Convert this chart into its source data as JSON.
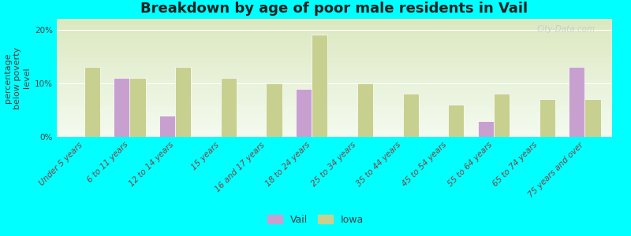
{
  "title": "Breakdown by age of poor male residents in Vail",
  "ylabel": "percentage\nbelow poverty\nlevel",
  "categories": [
    "Under 5 years",
    "6 to 11 years",
    "12 to 14 years",
    "15 years",
    "16 and 17 years",
    "18 to 24 years",
    "25 to 34 years",
    "35 to 44 years",
    "45 to 54 years",
    "55 to 64 years",
    "65 to 74 years",
    "75 years and over"
  ],
  "vail_values": [
    null,
    11.0,
    4.0,
    null,
    null,
    9.0,
    null,
    null,
    null,
    3.0,
    null,
    13.0
  ],
  "iowa_values": [
    13.0,
    11.0,
    13.0,
    11.0,
    10.0,
    19.0,
    10.0,
    8.0,
    6.0,
    8.0,
    7.0,
    7.0
  ],
  "vail_color": "#c8a0d0",
  "iowa_color": "#c8d090",
  "background_color": "#00ffff",
  "plot_bg_top": "#dce8c0",
  "plot_bg_bottom": "#f4fbf0",
  "ylim": [
    0,
    22
  ],
  "yticks": [
    0,
    10,
    20
  ],
  "ytick_labels": [
    "0%",
    "10%",
    "20%"
  ],
  "bar_width": 0.35,
  "watermark": "City-Data.com",
  "title_fontsize": 13,
  "axis_label_fontsize": 8,
  "tick_fontsize": 7.5,
  "legend_fontsize": 9
}
